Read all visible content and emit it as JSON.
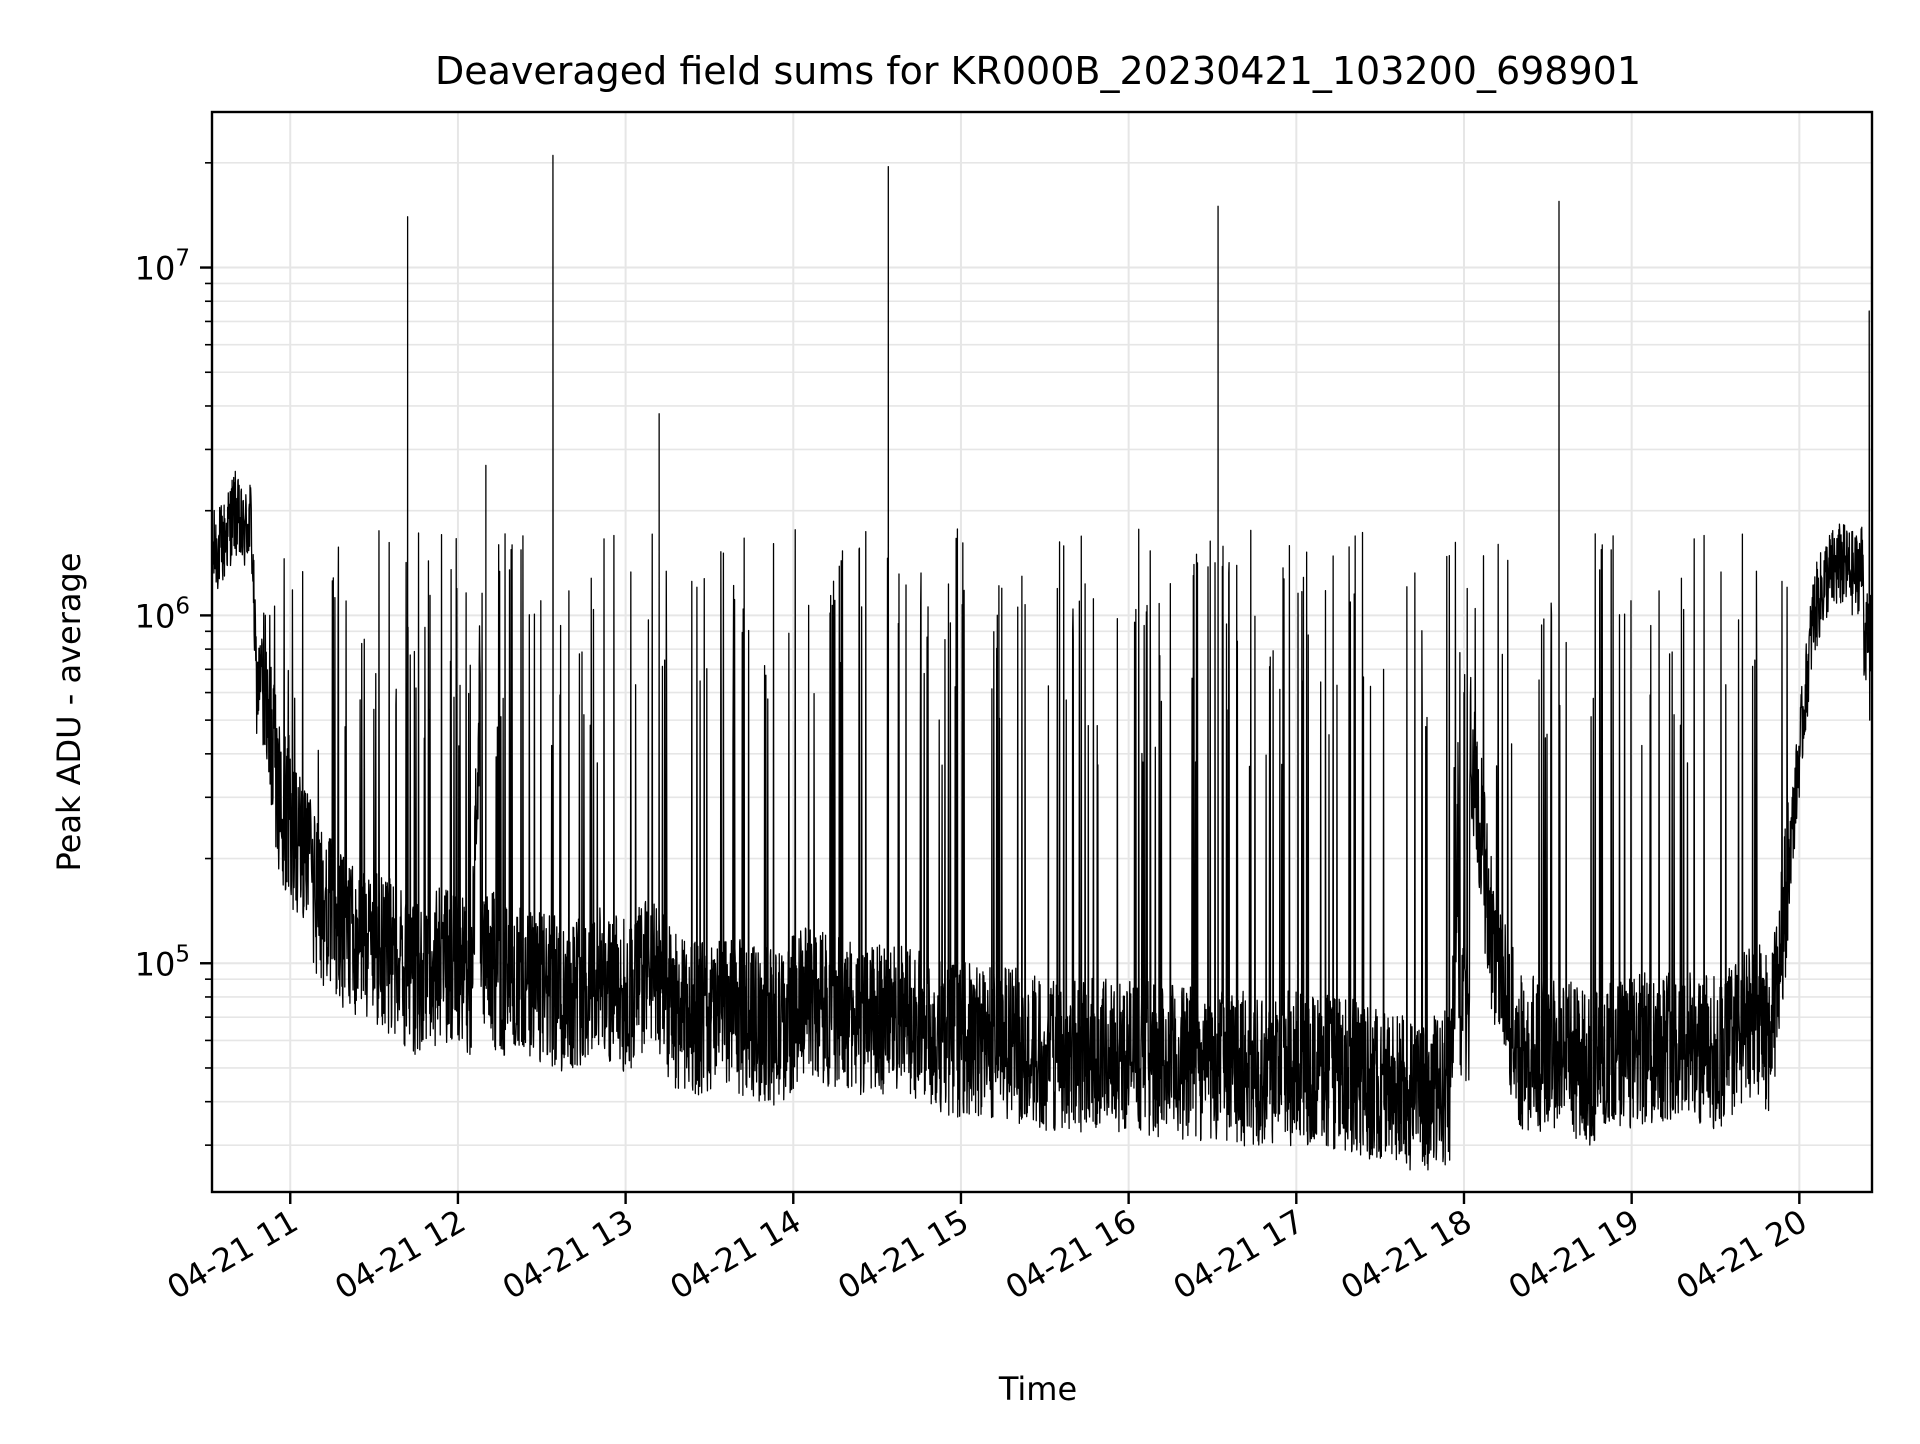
{
  "chart_data": {
    "type": "line",
    "title": "Deaveraged field sums for KR000B_20230421_103200_698901",
    "xlabel": "Time",
    "ylabel": "Peak ADU - average",
    "yscale": "log",
    "grid": true,
    "legend": "none",
    "line_color": "#000000",
    "xlim": [
      "2023-04-21 10:32",
      "2023-04-21 20:26"
    ],
    "ylim": [
      22000,
      28000000
    ],
    "xticks": [
      "04-21 11",
      "04-21 12",
      "04-21 13",
      "04-21 14",
      "04-21 15",
      "04-21 16",
      "04-21 17",
      "04-21 18",
      "04-21 19",
      "04-21 20"
    ],
    "yticks": [
      {
        "value": 100000,
        "base": "10",
        "exp": "5"
      },
      {
        "value": 1000000,
        "base": "10",
        "exp": "6"
      },
      {
        "value": 10000000,
        "base": "10",
        "exp": "7"
      }
    ],
    "series": [
      {
        "x": [
          "2023-04-21 10:32",
          "2023-04-21 10:36",
          "2023-04-21 10:40",
          "2023-04-21 10:43",
          "2023-04-21 10:46",
          "2023-04-21 10:48",
          "2023-04-21 10:50",
          "2023-04-21 10:53",
          "2023-04-21 10:56",
          "2023-04-21 11:00",
          "2023-04-21 11:05",
          "2023-04-21 11:10",
          "2023-04-21 11:20",
          "2023-04-21 11:30",
          "2023-04-21 11:40",
          "2023-04-21 11:42",
          "2023-04-21 11:44",
          "2023-04-21 11:55",
          "2023-04-21 12:05",
          "2023-04-21 12:10",
          "2023-04-21 12:12",
          "2023-04-21 12:14",
          "2023-04-21 12:25",
          "2023-04-21 12:32",
          "2023-04-21 12:34",
          "2023-04-21 12:36",
          "2023-04-21 12:50",
          "2023-04-21 13:00",
          "2023-04-21 13:10",
          "2023-04-21 13:12",
          "2023-04-21 13:14",
          "2023-04-21 13:20",
          "2023-04-21 13:30",
          "2023-04-21 13:40",
          "2023-04-21 13:55",
          "2023-04-21 14:05",
          "2023-04-21 14:10",
          "2023-04-21 14:20",
          "2023-04-21 14:32",
          "2023-04-21 14:34",
          "2023-04-21 14:36",
          "2023-04-21 14:45",
          "2023-04-21 15:00",
          "2023-04-21 15:15",
          "2023-04-21 15:30",
          "2023-04-21 15:45",
          "2023-04-21 16:00",
          "2023-04-21 16:15",
          "2023-04-21 16:30",
          "2023-04-21 16:32",
          "2023-04-21 16:34",
          "2023-04-21 16:45",
          "2023-04-21 17:00",
          "2023-04-21 17:15",
          "2023-04-21 17:30",
          "2023-04-21 17:40",
          "2023-04-21 17:50",
          "2023-04-21 17:55",
          "2023-04-21 18:00",
          "2023-04-21 18:10",
          "2023-04-21 18:20",
          "2023-04-21 18:32",
          "2023-04-21 18:34",
          "2023-04-21 18:36",
          "2023-04-21 18:45",
          "2023-04-21 19:00",
          "2023-04-21 19:15",
          "2023-04-21 19:30",
          "2023-04-21 19:45",
          "2023-04-21 19:50",
          "2023-04-21 19:55",
          "2023-04-21 20:00",
          "2023-04-21 20:05",
          "2023-04-21 20:10",
          "2023-04-21 20:15",
          "2023-04-21 20:20",
          "2023-04-21 20:24",
          "2023-04-21 20:25",
          "2023-04-21 20:26"
        ],
        "y": [
          1500000,
          1600000,
          2000000,
          1700000,
          1900000,
          600000,
          700000,
          450000,
          300000,
          250000,
          200000,
          150000,
          120000,
          110000,
          100000,
          14000000,
          90000,
          100000,
          90000,
          2700000,
          100000,
          90000,
          85000,
          85000,
          21000000,
          80000,
          90000,
          80000,
          100000,
          3800000,
          80000,
          70000,
          70000,
          70000,
          65000,
          80000,
          75000,
          70000,
          70000,
          19500000,
          70000,
          65000,
          60000,
          60000,
          55000,
          55000,
          55000,
          52000,
          50000,
          15000000,
          50000,
          50000,
          50000,
          48000,
          45000,
          42000,
          42000,
          45000,
          600000,
          120000,
          55000,
          55000,
          15500000,
          55000,
          50000,
          55000,
          60000,
          55000,
          70000,
          60000,
          150000,
          400000,
          1000000,
          1300000,
          1400000,
          1300000,
          1500000,
          7500000,
          500000
        ]
      }
    ]
  }
}
